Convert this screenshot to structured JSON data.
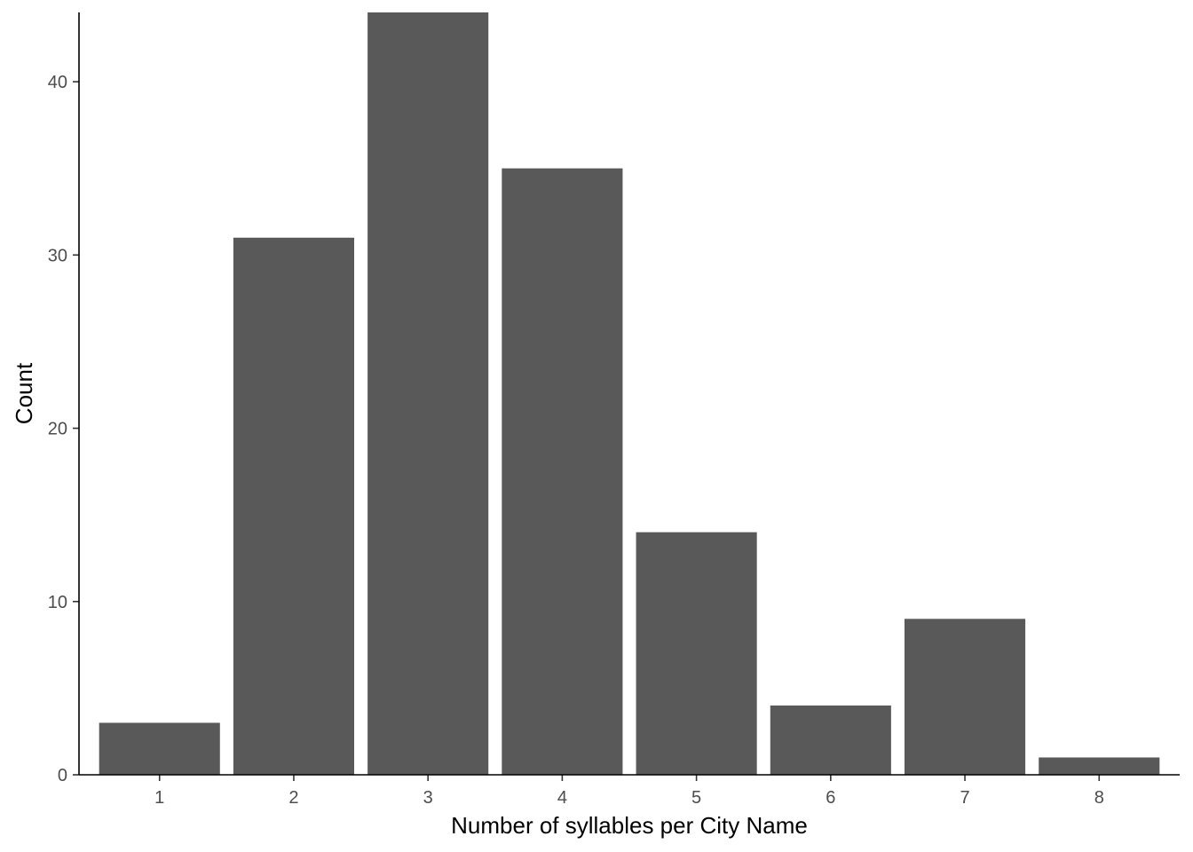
{
  "chart_data": {
    "type": "bar",
    "categories": [
      "1",
      "2",
      "3",
      "4",
      "5",
      "6",
      "7",
      "8"
    ],
    "values": [
      3,
      31,
      44,
      35,
      14,
      4,
      9,
      1
    ],
    "title": "",
    "xlabel": "Number of syllables per City Name",
    "ylabel": "Count",
    "ylim": [
      0,
      44
    ],
    "yticks": [
      0,
      10,
      20,
      30,
      40
    ],
    "grid": false,
    "colors": {
      "bar": "#595959",
      "axis": "#000000",
      "tick_label": "#4d4d4d"
    }
  }
}
